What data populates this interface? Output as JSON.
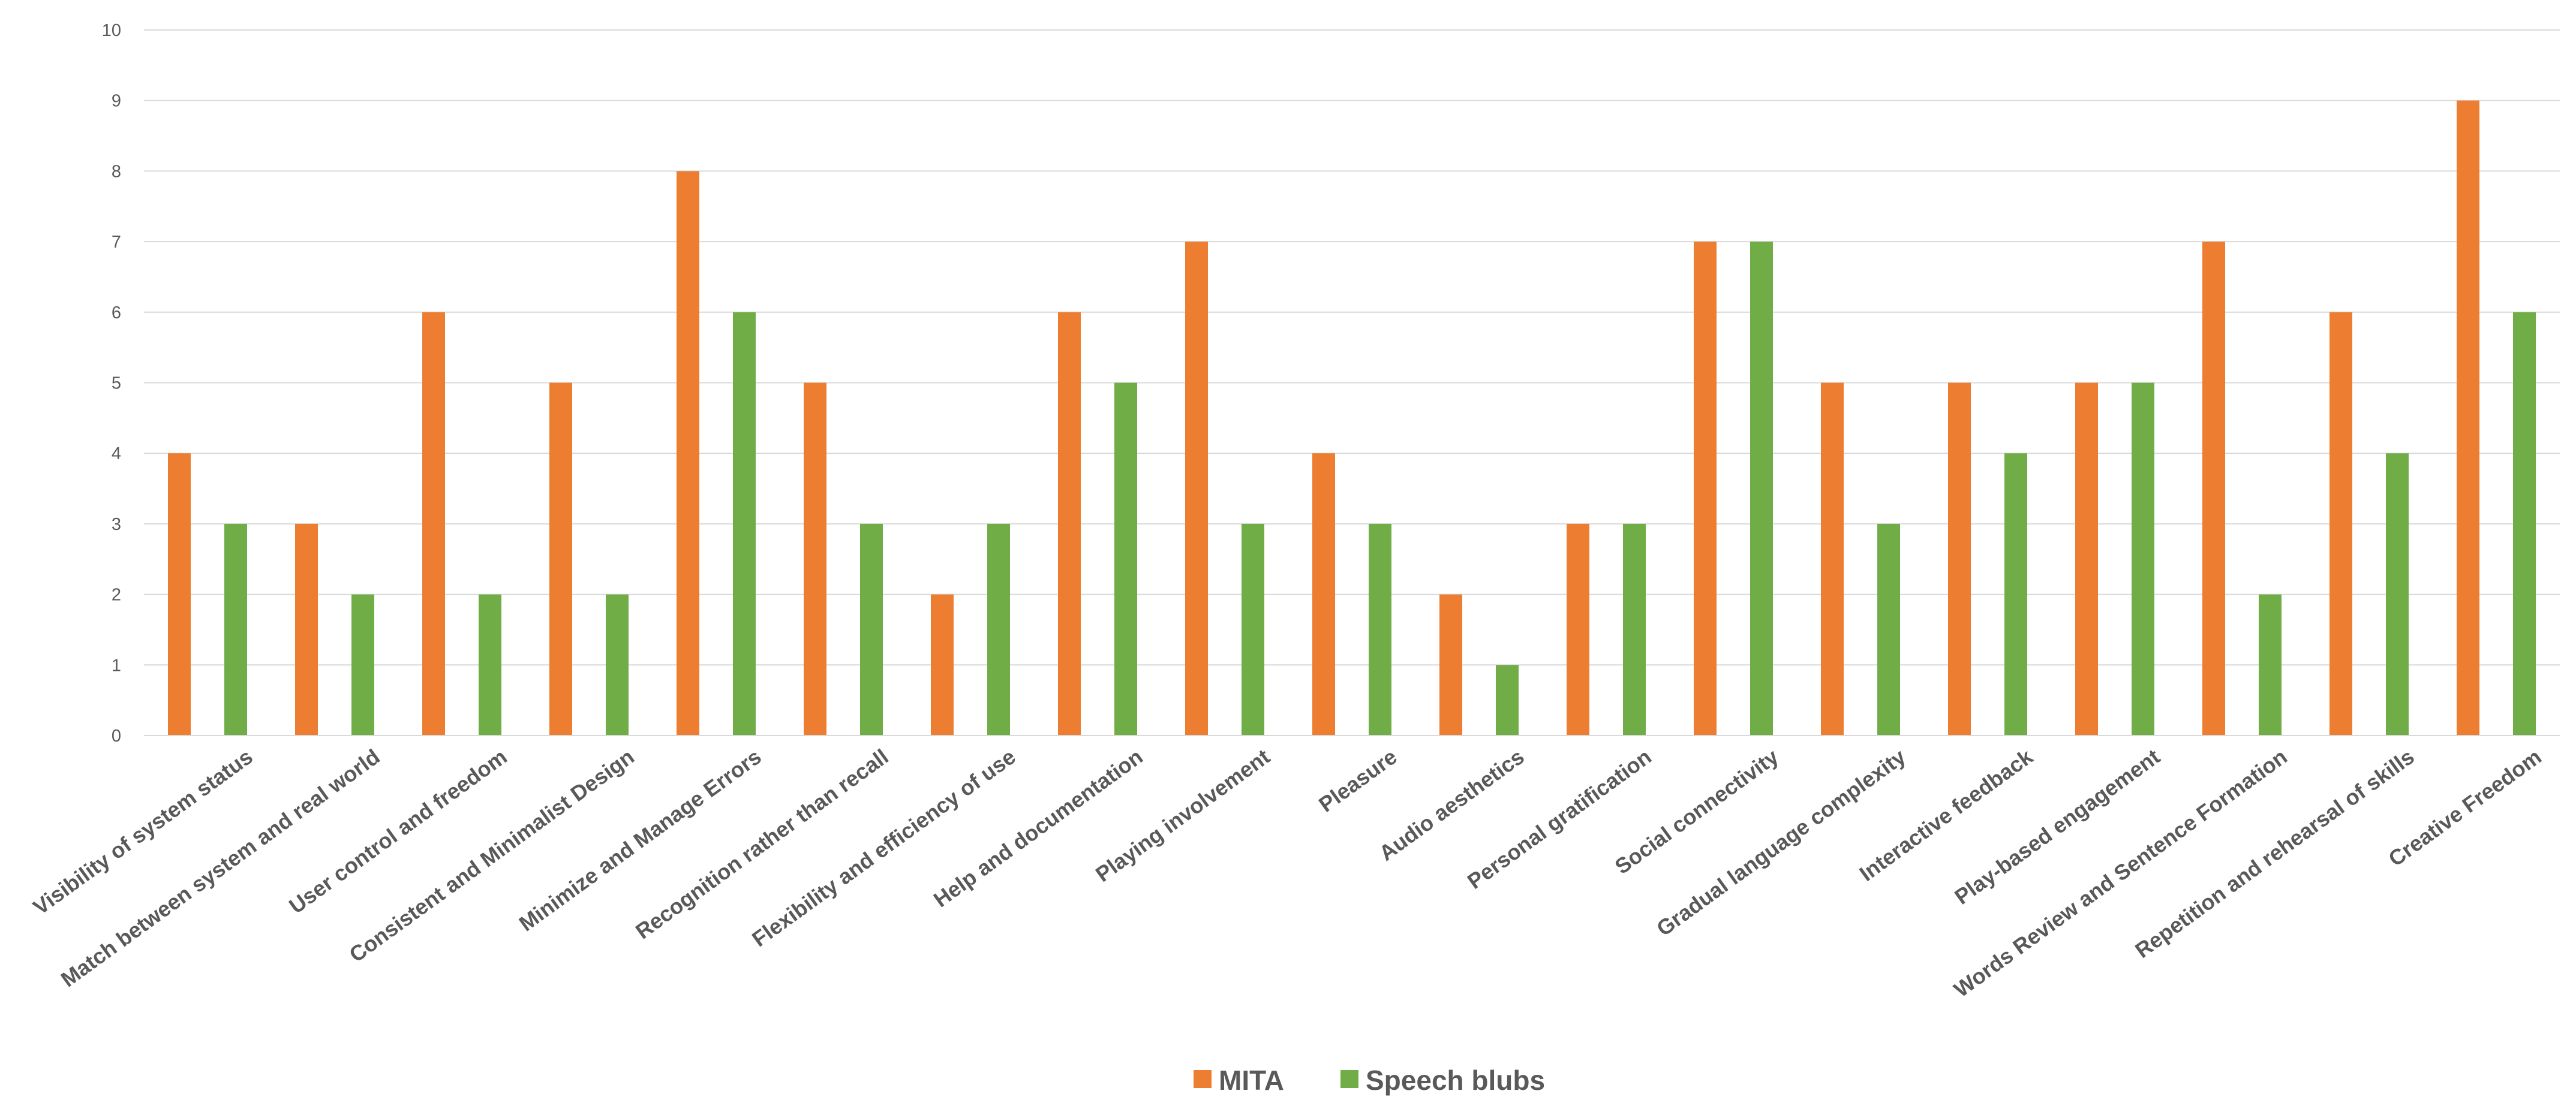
{
  "chart_data": {
    "type": "bar",
    "title": "",
    "xlabel": "",
    "ylabel": "",
    "ylim": [
      0,
      10
    ],
    "yticks": [
      0,
      1,
      2,
      3,
      4,
      5,
      6,
      7,
      8,
      9,
      10
    ],
    "grid": true,
    "legend_position": "bottom",
    "categories": [
      "Visibility of system status",
      "Match between system and real world",
      "User control and freedom",
      "Consistent and Minimalist Design",
      "Minimize and Manage Errors",
      "Recognition rather than recall",
      "Flexibility and efficiency of use",
      "Help and documentation",
      "Playing involvement",
      "Pleasure",
      "Audio aesthetics",
      "Personal gratification",
      "Social connectivity",
      "Gradual language complexity",
      "Interactive feedback",
      "Play-based engagement",
      "Words Review and Sentence Formation",
      "Repetition and rehearsal of skills",
      "Creative Freedom"
    ],
    "series": [
      {
        "name": "MITA",
        "color": "#ED7D31",
        "values": [
          4,
          3,
          6,
          5,
          8,
          5,
          2,
          6,
          7,
          4,
          2,
          3,
          7,
          5,
          5,
          5,
          7,
          6,
          9
        ]
      },
      {
        "name": "Speech blubs",
        "color": "#70AD47",
        "values": [
          3,
          2,
          2,
          2,
          6,
          3,
          3,
          5,
          3,
          3,
          1,
          3,
          7,
          3,
          4,
          5,
          2,
          4,
          6
        ]
      }
    ]
  }
}
